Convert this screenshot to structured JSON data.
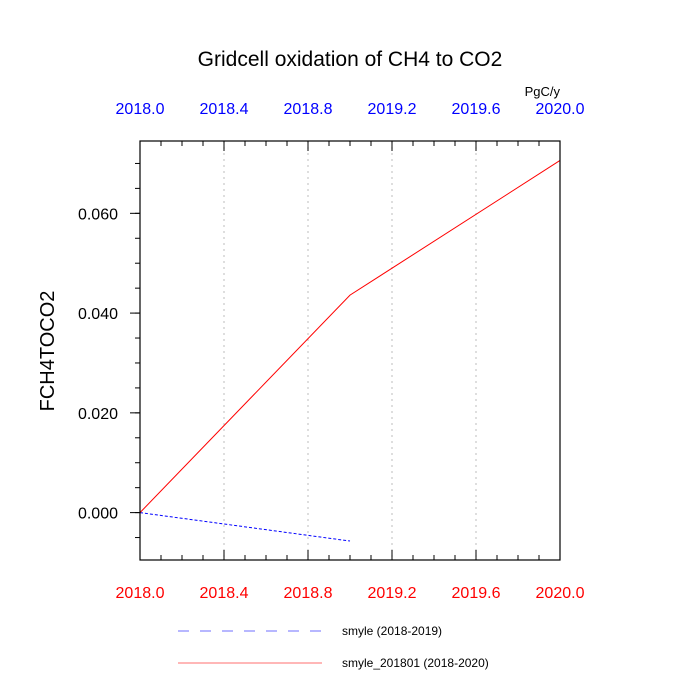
{
  "chart_data": {
    "type": "line",
    "title": "Gridcell oxidation of CH4 to CO2",
    "ylabel": "FCH4TOCO2",
    "units": "PgC/y",
    "xlim": [
      2018.0,
      2020.0
    ],
    "ylim": [
      -0.0095,
      0.0745
    ],
    "x_ticks": [
      "2018.0",
      "2018.4",
      "2018.8",
      "2019.2",
      "2019.6",
      "2020.0"
    ],
    "x_tick_values": [
      2018.0,
      2018.4,
      2018.8,
      2019.2,
      2019.6,
      2020.0
    ],
    "y_ticks": [
      "0.000",
      "0.020",
      "0.040",
      "0.060"
    ],
    "y_tick_values": [
      0.0,
      0.02,
      0.04,
      0.06
    ],
    "top_axis_color": "#0000ff",
    "bottom_axis_color": "#ff0000",
    "grid": "vertical-dotted",
    "legend_position": "bottom",
    "series": [
      {
        "name": "smyle (2018-2019)",
        "color": "#0000ff",
        "dash": "dashed",
        "x": [
          2018.0,
          2019.0
        ],
        "y": [
          0.0,
          -0.0057
        ]
      },
      {
        "name": "smyle_201801 (2018-2020)",
        "color": "#ff0000",
        "dash": "solid",
        "x": [
          2018.0,
          2019.0,
          2020.0
        ],
        "y": [
          0.0,
          0.0436,
          0.0706
        ]
      }
    ]
  }
}
